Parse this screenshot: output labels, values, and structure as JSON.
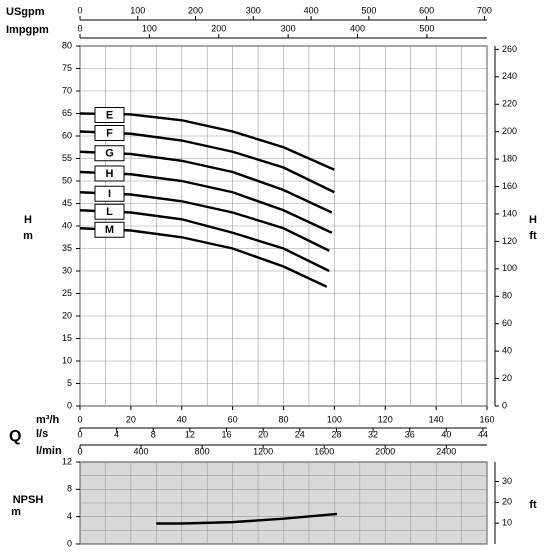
{
  "chart_data": [
    {
      "type": "line",
      "ylabel": "H",
      "yunit": "m",
      "y2label": "H",
      "y2unit": "ft",
      "xlabel": "m³/h",
      "q_label": "Q",
      "xlim": [
        0,
        160
      ],
      "xticks": [
        0,
        20,
        40,
        60,
        80,
        100,
        120,
        140,
        160
      ],
      "xgrid": [
        0,
        10,
        20,
        30,
        40,
        50,
        60,
        70,
        80,
        90,
        100,
        110,
        120,
        130,
        140,
        150,
        160
      ],
      "ylim": [
        0,
        80
      ],
      "yticks": [
        0,
        5,
        10,
        15,
        20,
        25,
        30,
        35,
        40,
        45,
        50,
        55,
        60,
        65,
        70,
        75,
        80
      ],
      "y2lim": [
        0,
        262.47
      ],
      "y2ticks": [
        0,
        20,
        40,
        60,
        80,
        100,
        120,
        140,
        160,
        180,
        200,
        220,
        240,
        260
      ],
      "top_axes": [
        {
          "label": "USgpm",
          "lim": [
            0,
            704.5
          ],
          "ticks": [
            0,
            100,
            200,
            300,
            400,
            500,
            600,
            700
          ]
        },
        {
          "label": "Impgpm",
          "lim": [
            0,
            586.6
          ],
          "ticks": [
            0,
            100,
            200,
            300,
            400,
            500
          ]
        }
      ],
      "bottom_axes": [
        {
          "label": "l/s",
          "lim": [
            0,
            44.44
          ],
          "ticks": [
            0,
            4,
            8,
            12,
            16,
            20,
            24,
            28,
            32,
            36,
            40,
            44
          ]
        },
        {
          "label": "l/min",
          "lim": [
            0,
            2666.7
          ],
          "ticks": [
            0,
            400,
            800,
            1200,
            1600,
            2000,
            2400
          ]
        }
      ],
      "series": [
        {
          "name": "E",
          "color": "#000000",
          "x": [
            0,
            20,
            40,
            60,
            80,
            100
          ],
          "values": [
            65,
            64.8,
            63.5,
            61,
            57.5,
            52.5
          ]
        },
        {
          "name": "F",
          "color": "#000000",
          "x": [
            0,
            20,
            40,
            60,
            80,
            100
          ],
          "values": [
            61,
            60.5,
            59,
            56.5,
            53,
            47.5
          ]
        },
        {
          "name": "G",
          "color": "#000000",
          "x": [
            0,
            20,
            40,
            60,
            80,
            99
          ],
          "values": [
            56.5,
            56,
            54.5,
            52,
            48,
            43
          ]
        },
        {
          "name": "H",
          "color": "#000000",
          "x": [
            0,
            20,
            40,
            60,
            80,
            99
          ],
          "values": [
            52,
            51.5,
            50,
            47.5,
            43.5,
            38.5
          ]
        },
        {
          "name": "I",
          "color": "#000000",
          "x": [
            0,
            20,
            40,
            60,
            80,
            98
          ],
          "values": [
            47.5,
            47,
            45.5,
            43,
            39.5,
            34.5
          ]
        },
        {
          "name": "L",
          "color": "#000000",
          "x": [
            0,
            20,
            40,
            60,
            80,
            98
          ],
          "values": [
            43.5,
            43,
            41.5,
            38.5,
            35,
            30
          ]
        },
        {
          "name": "M",
          "color": "#000000",
          "x": [
            0,
            20,
            40,
            60,
            80,
            97
          ],
          "values": [
            39.5,
            39,
            37.5,
            35,
            31,
            26.5
          ]
        }
      ]
    },
    {
      "type": "line",
      "ylabel": "NPSH",
      "yunit": "m",
      "y2unit": "ft",
      "background": "#d9d9d9",
      "xlim": [
        0,
        160
      ],
      "xgrid": [
        0,
        10,
        20,
        30,
        40,
        50,
        60,
        70,
        80,
        90,
        100,
        110,
        120,
        130,
        140,
        150,
        160
      ],
      "ylim": [
        0,
        12
      ],
      "yticks": [
        0,
        4,
        8,
        12
      ],
      "ygrid": [
        0,
        2,
        4,
        6,
        8,
        10,
        12
      ],
      "y2lim": [
        0,
        39.37
      ],
      "y2ticks": [
        10,
        20,
        30
      ],
      "series": [
        {
          "name": "NPSH",
          "color": "#000000",
          "x": [
            30,
            40,
            60,
            80,
            101
          ],
          "values": [
            3.0,
            3.0,
            3.2,
            3.7,
            4.4
          ]
        }
      ]
    }
  ]
}
